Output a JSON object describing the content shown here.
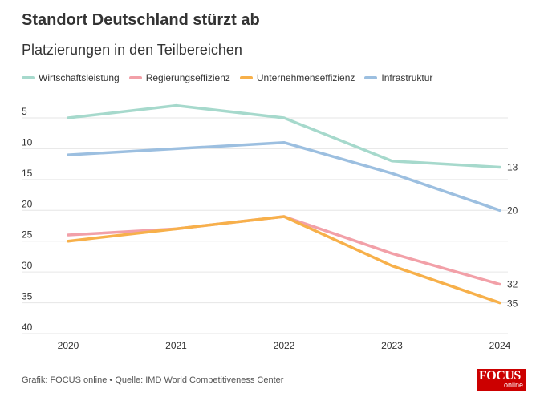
{
  "title": "Standort Deutschland stürzt ab",
  "subtitle": "Platzierungen in den Teilbereichen",
  "footer": "Grafik: FOCUS online • Quelle: IMD World Competitiveness Center",
  "logo": {
    "line1": "FOCUS",
    "line2": "online"
  },
  "chart_data": {
    "type": "line",
    "title": "Standort Deutschland stürzt ab",
    "subtitle": "Platzierungen in den Teilbereichen",
    "x": [
      "2020",
      "2021",
      "2022",
      "2023",
      "2024"
    ],
    "yticks": [
      5,
      10,
      15,
      20,
      25,
      30,
      35,
      40
    ],
    "ylim": [
      40,
      2
    ],
    "y_reversed": true,
    "grid": true,
    "legend_position": "top-left",
    "series": [
      {
        "name": "Wirtschaftsleistung",
        "color": "#a6d9cc",
        "values": [
          5,
          3,
          5,
          12,
          13
        ],
        "end_label": "13"
      },
      {
        "name": "Regierungseffizienz",
        "color": "#f2a0a8",
        "values": [
          24,
          23,
          21,
          27,
          32
        ],
        "end_label": "32"
      },
      {
        "name": "Unternehmenseffizienz",
        "color": "#f7b04a",
        "values": [
          25,
          23,
          21,
          29,
          35
        ],
        "end_label": "35"
      },
      {
        "name": "Infrastruktur",
        "color": "#9cbfe0",
        "values": [
          11,
          10,
          9,
          14,
          20
        ],
        "end_label": "20"
      }
    ]
  }
}
